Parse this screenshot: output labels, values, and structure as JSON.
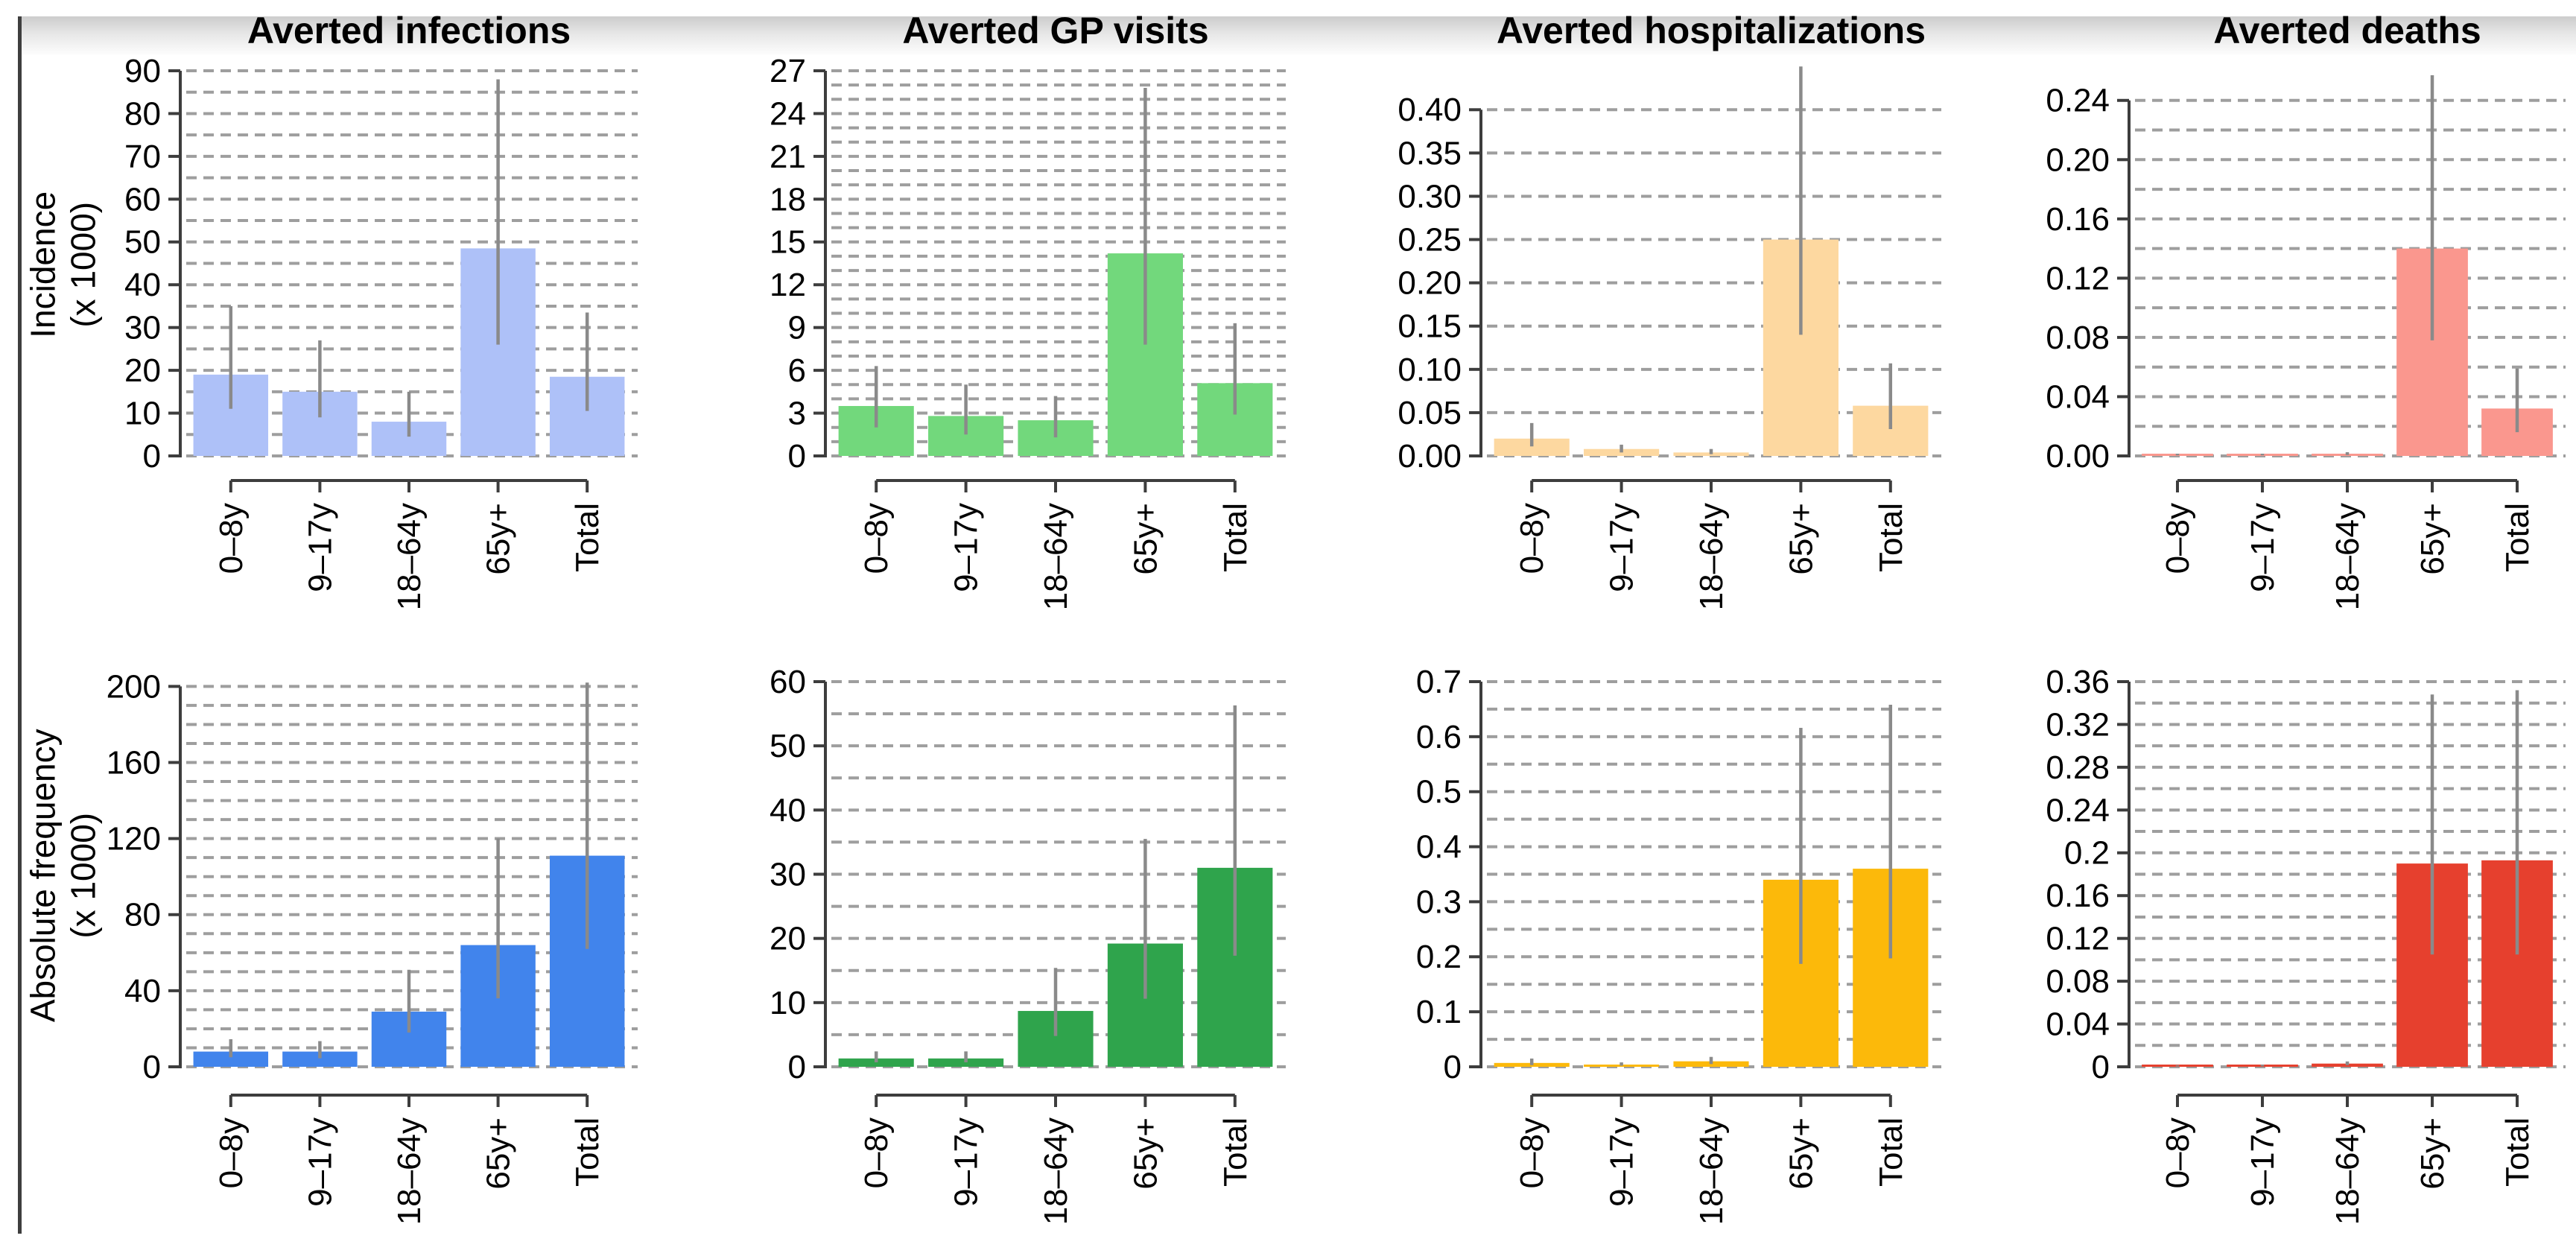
{
  "page": {
    "rows": [
      {
        "label_line1": "Incidence",
        "label_line2": "(x 1000)"
      },
      {
        "label_line1": "Absolute frequency",
        "label_line2": "(x 1000)"
      }
    ],
    "colors": {
      "grid": "#9e9e9e",
      "axis": "#3d3d3d",
      "error_bar": "#8a8a8a",
      "background": "#ffffff",
      "page_edge": "#3e3e3e"
    }
  },
  "chart_data": [
    {
      "type": "bar",
      "title": "Averted infections",
      "row": "Incidence (x 1000)",
      "color": "#aec1f8",
      "categories": [
        "0–8y",
        "9–17y",
        "18–64y",
        "65y+",
        "Total"
      ],
      "values": [
        19,
        15,
        8,
        48.5,
        18.5
      ],
      "error_low": [
        11,
        9,
        4.5,
        26,
        10.5
      ],
      "error_high": [
        35,
        27,
        15,
        88,
        33.5
      ],
      "ylim": [
        0,
        90
      ],
      "ylim_draw": [
        0,
        90
      ],
      "ytick_values": [
        0,
        10,
        20,
        30,
        40,
        50,
        60,
        70,
        80,
        90
      ],
      "ytick_labels": [
        "0",
        "10",
        "20",
        "30",
        "40",
        "50",
        "60",
        "70",
        "80",
        "90"
      ],
      "grid_step": 5,
      "grid": "dashed",
      "legend": false
    },
    {
      "type": "bar",
      "title": "Averted GP visits",
      "row": "Incidence (x 1000)",
      "color": "#72d87c",
      "categories": [
        "0–8y",
        "9–17y",
        "18–64y",
        "65y+",
        "Total"
      ],
      "values": [
        3.5,
        2.8,
        2.5,
        14.2,
        5.1
      ],
      "error_low": [
        2.0,
        1.5,
        1.3,
        7.8,
        2.9
      ],
      "error_high": [
        6.3,
        5.0,
        4.2,
        25.8,
        9.3
      ],
      "ylim": [
        0,
        27
      ],
      "ylim_draw": [
        0,
        27
      ],
      "ytick_values": [
        0,
        3,
        6,
        9,
        12,
        15,
        18,
        21,
        24,
        27
      ],
      "ytick_labels": [
        "0",
        "3",
        "6",
        "9",
        "12",
        "15",
        "18",
        "21",
        "24",
        "27"
      ],
      "grid_step": 1,
      "grid": "dashed",
      "legend": false
    },
    {
      "type": "bar",
      "title": "Averted hospitalizations",
      "row": "Incidence (x 1000)",
      "color": "#fdd8a0",
      "categories": [
        "0–8y",
        "9–17y",
        "18–64y",
        "65y+",
        "Total"
      ],
      "values": [
        0.02,
        0.008,
        0.004,
        0.25,
        0.058
      ],
      "error_low": [
        0.011,
        0.004,
        0.002,
        0.14,
        0.031
      ],
      "error_high": [
        0.038,
        0.013,
        0.008,
        0.45,
        0.107
      ],
      "ylim": [
        0,
        0.4
      ],
      "ylim_draw": [
        0,
        0.445
      ],
      "ytick_values": [
        0,
        0.05,
        0.1,
        0.15,
        0.2,
        0.25,
        0.3,
        0.35,
        0.4
      ],
      "ytick_labels": [
        "0.00",
        "0.05",
        "0.10",
        "0.15",
        "0.20",
        "0.25",
        "0.30",
        "0.35",
        "0.40"
      ],
      "grid_step": 0.05,
      "grid": "dashed",
      "legend": false
    },
    {
      "type": "bar",
      "title": "Averted deaths",
      "row": "Incidence (x 1000)",
      "color": "#fa978e",
      "categories": [
        "0–8y",
        "9–17y",
        "18–64y",
        "65y+",
        "Total"
      ],
      "values": [
        0.0008,
        0.0008,
        0.0012,
        0.14,
        0.032
      ],
      "error_low": [
        0.0004,
        0.0004,
        0.0006,
        0.078,
        0.016
      ],
      "error_high": [
        0.0015,
        0.0015,
        0.0025,
        0.257,
        0.059
      ],
      "ylim": [
        0,
        0.24
      ],
      "ylim_draw": [
        0,
        0.26
      ],
      "ytick_values": [
        0,
        0.04,
        0.08,
        0.12,
        0.16,
        0.2,
        0.24
      ],
      "ytick_labels": [
        "0.00",
        "0.04",
        "0.08",
        "0.12",
        "0.16",
        "0.20",
        "0.24"
      ],
      "grid_step": 0.02,
      "grid": "dashed",
      "legend": false
    },
    {
      "type": "bar",
      "row": "Absolute frequency (x 1000)",
      "color": "#4184ec",
      "categories": [
        "0–8y",
        "9–17y",
        "18–64y",
        "65y+",
        "Total"
      ],
      "values": [
        8,
        8,
        29,
        64,
        111
      ],
      "error_low": [
        5,
        4.5,
        18,
        36,
        62
      ],
      "error_high": [
        14.5,
        13.5,
        51,
        120,
        202
      ],
      "ylim": [
        0,
        200
      ],
      "ylim_draw": [
        0,
        202.5
      ],
      "ytick_values": [
        0,
        40,
        80,
        120,
        160,
        200
      ],
      "ytick_labels": [
        "0",
        "40",
        "80",
        "120",
        "160",
        "200"
      ],
      "grid_step": 10,
      "grid": "dashed",
      "legend": false
    },
    {
      "type": "bar",
      "row": "Absolute frequency (x 1000)",
      "color": "#2fa44c",
      "categories": [
        "0–8y",
        "9–17y",
        "18–64y",
        "65y+",
        "Total"
      ],
      "values": [
        1.3,
        1.3,
        8.7,
        19.2,
        31
      ],
      "error_low": [
        0.7,
        0.7,
        4.8,
        10.6,
        17.3
      ],
      "error_high": [
        2.4,
        2.4,
        15.4,
        35.5,
        56.3
      ],
      "ylim": [
        0,
        60
      ],
      "ylim_draw": [
        0,
        60
      ],
      "ytick_values": [
        0,
        10,
        20,
        30,
        40,
        50,
        60
      ],
      "ytick_labels": [
        "0",
        "10",
        "20",
        "30",
        "40",
        "50",
        "60"
      ],
      "grid_step": 5,
      "grid": "dashed",
      "legend": false
    },
    {
      "type": "bar",
      "row": "Absolute frequency (x 1000)",
      "color": "#fcb90a",
      "categories": [
        "0–8y",
        "9–17y",
        "18–64y",
        "65y+",
        "Total"
      ],
      "values": [
        0.007,
        0.004,
        0.01,
        0.34,
        0.36
      ],
      "error_low": [
        0.003,
        0.002,
        0.005,
        0.187,
        0.197
      ],
      "error_high": [
        0.015,
        0.008,
        0.018,
        0.616,
        0.658
      ],
      "ylim": [
        0,
        0.7
      ],
      "ylim_draw": [
        0,
        0.7
      ],
      "ytick_values": [
        0,
        0.1,
        0.2,
        0.3,
        0.4,
        0.5,
        0.6,
        0.7
      ],
      "ytick_labels": [
        "0",
        "0.1",
        "0.2",
        "0.3",
        "0.4",
        "0.5",
        "0.6",
        "0.7"
      ],
      "grid_step": 0.05,
      "grid": "dashed",
      "legend": false
    },
    {
      "type": "bar",
      "row": "Absolute frequency (x 1000)",
      "color": "#e6402e",
      "categories": [
        "0–8y",
        "9–17y",
        "18–64y",
        "65y+",
        "Total"
      ],
      "values": [
        0.0008,
        0.001,
        0.003,
        0.19,
        0.193
      ],
      "error_low": [
        0.0004,
        0.0005,
        0.0015,
        0.105,
        0.105
      ],
      "error_high": [
        0.0015,
        0.002,
        0.005,
        0.348,
        0.352
      ],
      "ylim": [
        0,
        0.36
      ],
      "ylim_draw": [
        0,
        0.36
      ],
      "ytick_values": [
        0,
        0.04,
        0.08,
        0.12,
        0.16,
        0.2,
        0.24,
        0.28,
        0.32,
        0.36
      ],
      "ytick_labels": [
        "0",
        "0.04",
        "0.08",
        "0.12",
        "0.16",
        "0.2",
        "0.24",
        "0.28",
        "0.32",
        "0.36"
      ],
      "grid_step": 0.02,
      "grid": "dashed",
      "legend": false
    }
  ]
}
